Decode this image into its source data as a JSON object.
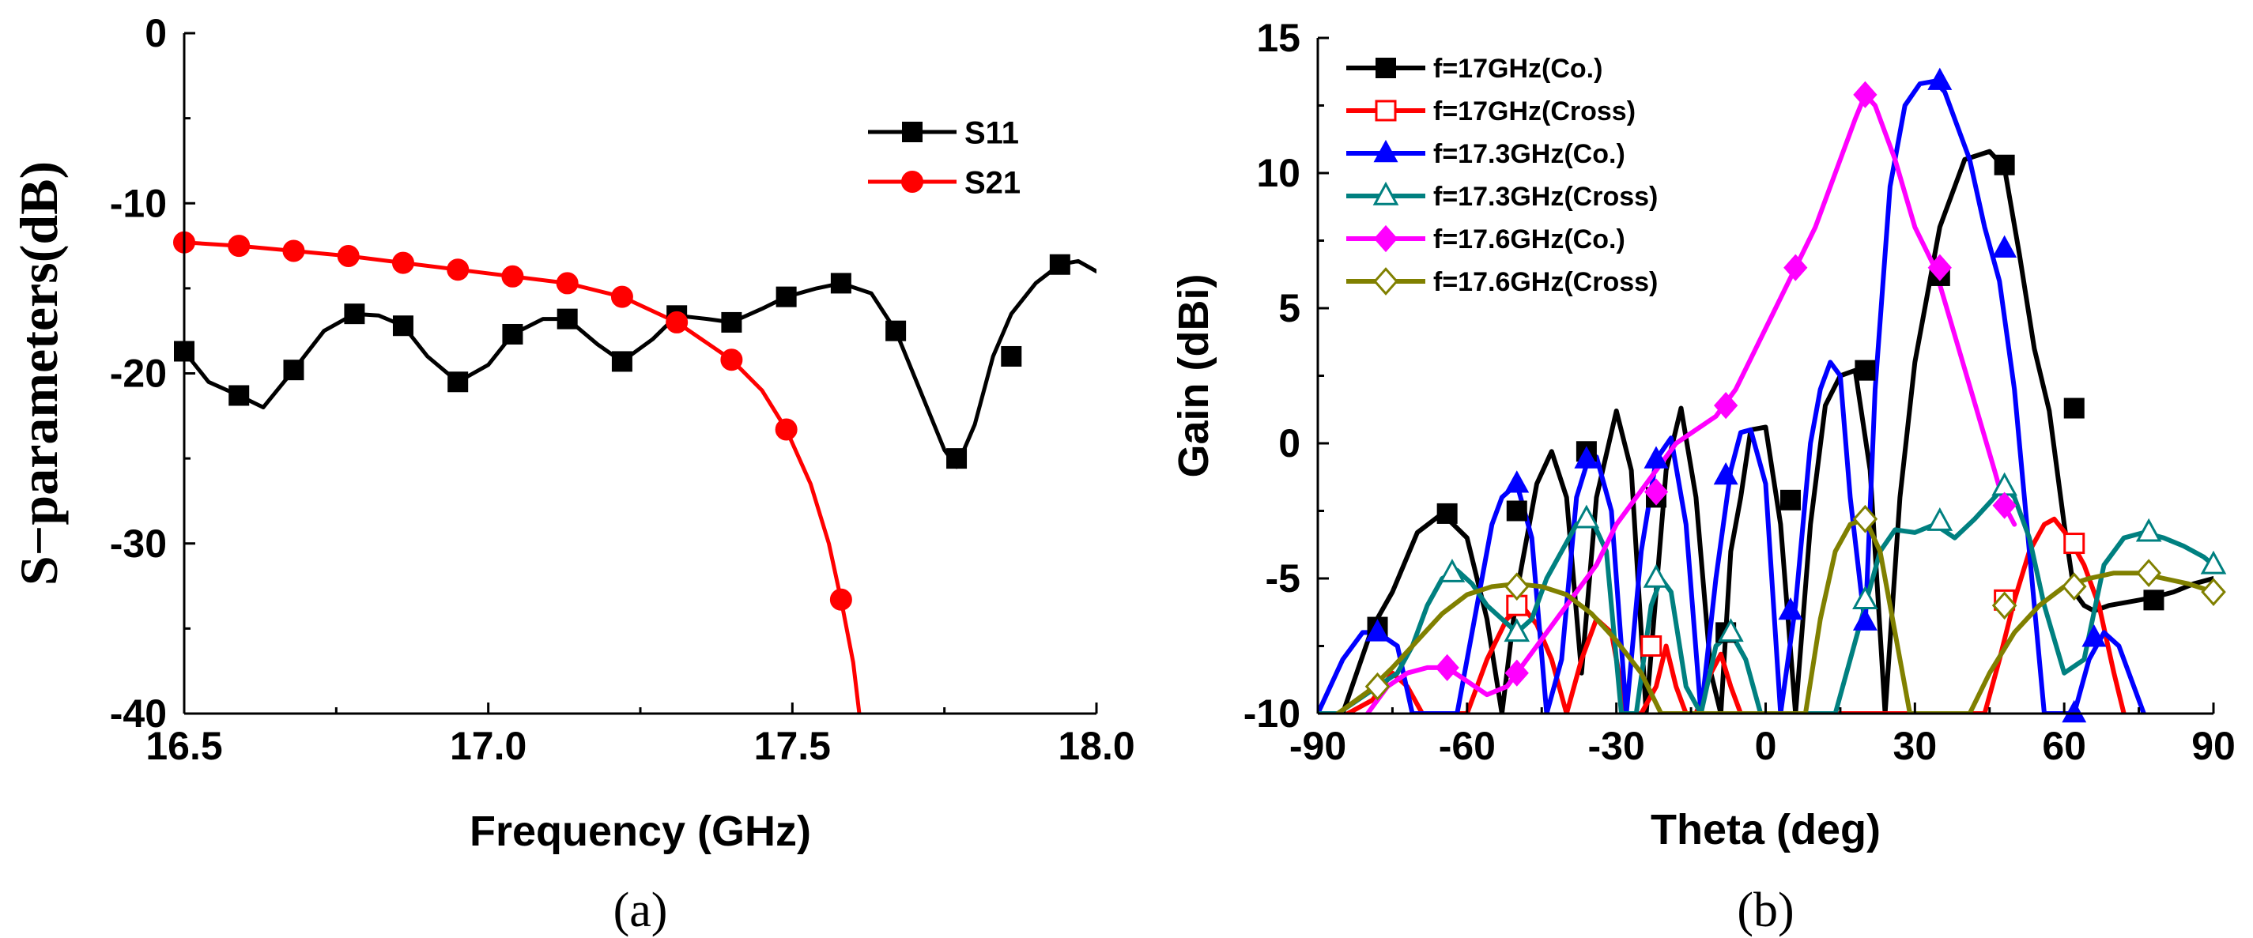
{
  "chart_data": [
    {
      "id": "a",
      "type": "line",
      "caption": "(a)",
      "xlabel": "Frequency (GHz)",
      "ylabel": "S−parameters(dB)",
      "xlim": [
        16.5,
        18.0
      ],
      "ylim": [
        -40,
        0
      ],
      "xticks": [
        16.5,
        17.0,
        17.5,
        18.0
      ],
      "xtick_labels": [
        "16.5",
        "17.0",
        "17.5",
        "18.0"
      ],
      "yticks": [
        -40,
        -30,
        -20,
        -10,
        0
      ],
      "ytick_labels": [
        "-40",
        "-30",
        "-20",
        "-10",
        "0"
      ],
      "legend_position": "top-right",
      "series": [
        {
          "name": "S11",
          "color": "#000000",
          "marker": "square-filled",
          "x": [
            16.5,
            16.54,
            16.59,
            16.63,
            16.68,
            16.73,
            16.78,
            16.82,
            16.86,
            16.9,
            16.95,
            17.0,
            17.04,
            17.09,
            17.13,
            17.18,
            17.22,
            17.27,
            17.31,
            17.36,
            17.4,
            17.45,
            17.49,
            17.54,
            17.58,
            17.63,
            17.67,
            17.71,
            17.75,
            17.77,
            17.8,
            17.83,
            17.86,
            17.9,
            17.94,
            17.97,
            18.0
          ],
          "y": [
            -18.7,
            -20.5,
            -21.3,
            -22.0,
            -19.8,
            -17.5,
            -16.5,
            -16.6,
            -17.2,
            -19.0,
            -20.5,
            -19.5,
            -17.7,
            -16.8,
            -16.8,
            -18.3,
            -19.3,
            -18.0,
            -16.6,
            -16.8,
            -17.0,
            -16.2,
            -15.5,
            -15.0,
            -14.7,
            -15.3,
            -17.5,
            -21.0,
            -24.5,
            -25.5,
            -23.0,
            -19.0,
            -16.5,
            -14.7,
            -13.6,
            -13.4,
            -14.0
          ],
          "marker_x": [
            16.5,
            16.59,
            16.68,
            16.78,
            16.86,
            16.95,
            17.04,
            17.13,
            17.22,
            17.31,
            17.4,
            17.49,
            17.58,
            17.67,
            17.77,
            17.86,
            17.94
          ],
          "marker_y": [
            -18.7,
            -21.3,
            -19.8,
            -16.5,
            -17.2,
            -20.5,
            -17.7,
            -16.8,
            -19.3,
            -16.6,
            -17.0,
            -15.5,
            -14.7,
            -17.5,
            -25.0,
            -19.0,
            -13.6
          ]
        },
        {
          "name": "S21",
          "color": "#ff0000",
          "marker": "circle-filled",
          "x": [
            16.5,
            16.59,
            16.68,
            16.77,
            16.86,
            16.95,
            17.04,
            17.13,
            17.22,
            17.31,
            17.4,
            17.45,
            17.49,
            17.53,
            17.56,
            17.58,
            17.6,
            17.61
          ],
          "y": [
            -12.3,
            -12.5,
            -12.8,
            -13.1,
            -13.5,
            -13.9,
            -14.3,
            -14.7,
            -15.5,
            -17.0,
            -19.2,
            -21.0,
            -23.3,
            -26.5,
            -30.0,
            -33.3,
            -37.0,
            -40.0
          ],
          "marker_x": [
            16.5,
            16.59,
            16.68,
            16.77,
            16.86,
            16.95,
            17.04,
            17.13,
            17.22,
            17.31,
            17.4,
            17.49,
            17.58
          ],
          "marker_y": [
            -12.3,
            -12.5,
            -12.8,
            -13.1,
            -13.5,
            -13.9,
            -14.3,
            -14.7,
            -15.5,
            -17.0,
            -19.2,
            -23.3,
            -33.3
          ]
        }
      ]
    },
    {
      "id": "b",
      "type": "line",
      "caption": "(b)",
      "xlabel": "Theta (deg)",
      "ylabel": "Gain (dBi)",
      "xlim": [
        -90,
        90
      ],
      "ylim": [
        -10,
        15
      ],
      "xticks": [
        -90,
        -60,
        -30,
        0,
        30,
        60,
        90
      ],
      "xtick_labels": [
        "-90",
        "-60",
        "-30",
        "0",
        "30",
        "60",
        "90"
      ],
      "yticks": [
        -10,
        -5,
        0,
        5,
        10,
        15
      ],
      "ytick_labels": [
        "-10",
        "-5",
        "0",
        "5",
        "10",
        "15"
      ],
      "legend_position": "top-left",
      "series": [
        {
          "name": "f=17GHz(Co.)",
          "color": "#000000",
          "marker": "square-filled",
          "x": [
            -85,
            -79,
            -75,
            -70,
            -65,
            -60,
            -56,
            -53,
            -50,
            -46,
            -43,
            -40,
            -37,
            -34,
            -30,
            -27,
            -24,
            -20,
            -17,
            -14,
            -11,
            -9,
            -7,
            -5,
            -3,
            0,
            3,
            6,
            9,
            12,
            15,
            18,
            21,
            24,
            27,
            30,
            35,
            40,
            45,
            48,
            51,
            54,
            57,
            60,
            62,
            64,
            66,
            69,
            72,
            75,
            78,
            82,
            86,
            90
          ],
          "y": [
            -10,
            -6.8,
            -5.5,
            -3.3,
            -2.6,
            -3.5,
            -6.5,
            -10,
            -5.5,
            -1.5,
            -0.3,
            -2.0,
            -8.5,
            -2.0,
            1.2,
            -1.0,
            -10,
            -1.0,
            1.3,
            -2.0,
            -8.5,
            -10,
            -4.0,
            -2.0,
            0.5,
            0.6,
            -3.0,
            -10,
            -3.0,
            1.4,
            2.5,
            2.7,
            -1.0,
            -10,
            -2.0,
            3.0,
            8.0,
            10.5,
            10.8,
            10.2,
            7.0,
            3.5,
            1.2,
            -3.0,
            -5.5,
            -6.0,
            -6.2,
            -6.0,
            -5.9,
            -5.8,
            -5.7,
            -5.5,
            -5.2,
            -5.0
          ],
          "marker_x": [
            -78,
            -64,
            -50,
            -36,
            -22,
            -8,
            5,
            20,
            35,
            48,
            62,
            78
          ],
          "marker_y": [
            -6.8,
            -2.6,
            -2.5,
            -0.3,
            -2.0,
            -7.0,
            -2.1,
            2.7,
            6.2,
            10.3,
            1.3,
            -5.8
          ]
        },
        {
          "name": "f=17GHz(Cross)",
          "color": "#ff0000",
          "marker": "square-open",
          "x": [
            -84,
            -79,
            -75,
            -72,
            -69,
            -66,
            -63,
            -60,
            -56,
            -52,
            -49,
            -46,
            -43,
            -40,
            -37,
            -34,
            -31,
            -28,
            -25,
            -22,
            -20,
            -18,
            -16,
            -14,
            -11,
            -9,
            -7,
            -5,
            -2,
            44,
            47,
            50,
            53,
            56,
            58,
            61,
            64,
            67,
            70,
            72
          ],
          "y": [
            -10,
            -9.5,
            -8.5,
            -9.0,
            -10,
            -10,
            -10,
            -10,
            -8.0,
            -6.5,
            -6.0,
            -6.7,
            -8.0,
            -10,
            -8.0,
            -6.5,
            -7.0,
            -10,
            -10,
            -9.0,
            -7.5,
            -9.0,
            -10,
            -10,
            -8.5,
            -7.8,
            -9.0,
            -10,
            -10,
            -10,
            -8.0,
            -5.8,
            -4.0,
            -3.0,
            -2.8,
            -3.5,
            -4.5,
            -6.0,
            -8.5,
            -10
          ],
          "marker_x": [
            -50,
            -23,
            48,
            62
          ],
          "marker_y": [
            -6.0,
            -7.5,
            -5.8,
            -3.7
          ]
        },
        {
          "name": "f=17.3GHz(Co.)",
          "color": "#0000ff",
          "marker": "triangle-filled",
          "x": [
            -90,
            -85,
            -81,
            -78,
            -74,
            -71,
            -68,
            -65,
            -62,
            -59,
            -55,
            -53,
            -50,
            -47,
            -44,
            -41,
            -38,
            -36,
            -34,
            -31,
            -28,
            -25,
            -22,
            -19,
            -16,
            -13,
            -10,
            -7,
            -5,
            -3,
            0,
            3,
            6,
            9,
            11,
            13,
            15,
            17,
            20,
            22,
            25,
            28,
            31,
            34,
            36,
            38,
            41,
            44,
            47,
            50,
            53,
            56,
            59,
            62,
            65,
            68,
            71,
            74,
            76
          ],
          "y": [
            -10,
            -8.0,
            -7.0,
            -7.0,
            -7.5,
            -10,
            -10,
            -10,
            -10,
            -7.0,
            -3.0,
            -2.0,
            -1.5,
            -3.5,
            -10,
            -8.0,
            -2.0,
            -0.8,
            -0.5,
            -2.5,
            -10,
            -4.0,
            -0.6,
            0.2,
            -3.0,
            -10,
            -5.0,
            -1.0,
            0.4,
            0.5,
            -1.5,
            -10,
            -6.0,
            0.0,
            2.0,
            3.0,
            2.5,
            -2.0,
            -6.8,
            2.0,
            9.5,
            12.5,
            13.3,
            13.4,
            13.0,
            12.0,
            10.5,
            8.0,
            6.0,
            2.0,
            -4.0,
            -10,
            -10,
            -10,
            -8.0,
            -7.0,
            -7.5,
            -9.0,
            -10
          ],
          "marker_x": [
            -78,
            -50,
            -36,
            -22,
            -8,
            5,
            20,
            35,
            48,
            62,
            66
          ],
          "marker_y": [
            -7.0,
            -1.5,
            -0.6,
            -0.6,
            -1.2,
            -6.2,
            -6.6,
            13.4,
            7.2,
            -10,
            -7.2
          ]
        },
        {
          "name": "f=17.3GHz(Cross)",
          "color": "#008080",
          "marker": "triangle-open",
          "x": [
            -90,
            -86,
            -82,
            -78,
            -74,
            -71,
            -68,
            -65,
            -62,
            -59,
            -56,
            -53,
            -50,
            -47,
            -44,
            -41,
            -38,
            -35,
            -32,
            -29,
            -26,
            -23,
            -21,
            -19,
            -16,
            -13,
            -10,
            -7,
            -4,
            -1,
            2,
            5,
            8,
            11,
            14,
            17,
            20,
            23,
            26,
            30,
            34,
            38,
            42,
            46,
            48,
            50,
            53,
            56,
            60,
            64,
            68,
            72,
            76,
            80,
            84,
            88,
            90
          ],
          "y": [
            -10,
            -10,
            -9.5,
            -9.0,
            -8.5,
            -7.5,
            -6.0,
            -5.0,
            -4.7,
            -5.2,
            -6.0,
            -6.5,
            -7.0,
            -6.5,
            -5.0,
            -4.0,
            -3.0,
            -2.8,
            -4.0,
            -10,
            -10,
            -6.0,
            -5.0,
            -5.5,
            -9.0,
            -10,
            -7.5,
            -7.0,
            -8.0,
            -10,
            -10,
            -10,
            -10,
            -10,
            -10,
            -8.0,
            -6.0,
            -4.0,
            -3.2,
            -3.3,
            -3.0,
            -3.5,
            -2.8,
            -2.0,
            -1.6,
            -2.0,
            -3.5,
            -6.0,
            -8.5,
            -8.0,
            -4.5,
            -3.5,
            -3.3,
            -3.5,
            -3.8,
            -4.2,
            -4.5
          ],
          "marker_x": [
            -63,
            -50,
            -36,
            -22,
            -7,
            20,
            35,
            48,
            77,
            90
          ],
          "marker_y": [
            -4.8,
            -7.0,
            -2.8,
            -5.0,
            -7.0,
            -5.8,
            -2.9,
            -1.6,
            -3.3,
            -4.5
          ]
        },
        {
          "name": "f=17.6GHz(Co.)",
          "color": "#ff00ff",
          "marker": "diamond-filled",
          "x": [
            -80,
            -76,
            -72,
            -68,
            -64,
            -60,
            -56,
            -52,
            -50,
            -46,
            -42,
            -38,
            -34,
            -30,
            -26,
            -22,
            -18,
            -14,
            -10,
            -6,
            -2,
            2,
            6,
            10,
            14,
            18,
            20,
            22,
            26,
            30,
            34,
            38,
            42,
            46,
            48,
            50
          ],
          "y": [
            -10,
            -9.0,
            -8.5,
            -8.3,
            -8.3,
            -8.8,
            -9.3,
            -9.0,
            -8.5,
            -7.5,
            -6.5,
            -5.5,
            -4.5,
            -3.0,
            -2.0,
            -1.0,
            0.0,
            0.5,
            1.0,
            2.0,
            3.5,
            5.0,
            6.5,
            8.0,
            10.0,
            12.0,
            12.9,
            12.5,
            10.5,
            8.0,
            6.5,
            4.0,
            1.5,
            -1.0,
            -2.3,
            -3.0
          ],
          "marker_x": [
            -64,
            -50,
            -22,
            -8,
            6,
            20,
            35,
            48
          ],
          "marker_y": [
            -8.3,
            -8.5,
            -1.8,
            1.4,
            6.5,
            12.9,
            6.5,
            -2.3
          ]
        },
        {
          "name": "f=17.6GHz(Cross)",
          "color": "#808000",
          "marker": "diamond-open",
          "x": [
            -86,
            -80,
            -75,
            -70,
            -65,
            -60,
            -55,
            -50,
            -45,
            -40,
            -35,
            -30,
            -25,
            -21,
            8,
            11,
            14,
            17,
            20,
            23,
            26,
            29,
            32,
            35,
            41,
            45,
            50,
            55,
            60,
            65,
            70,
            75,
            80,
            85,
            90
          ],
          "y": [
            -10,
            -9.2,
            -8.3,
            -7.3,
            -6.3,
            -5.6,
            -5.3,
            -5.2,
            -5.3,
            -5.6,
            -6.3,
            -7.3,
            -8.5,
            -10,
            -10,
            -6.5,
            -4.0,
            -3.0,
            -2.8,
            -4.0,
            -7.0,
            -10,
            -10,
            -10,
            -10,
            -8.5,
            -7.0,
            -6.0,
            -5.3,
            -5.0,
            -4.8,
            -4.8,
            -5.0,
            -5.2,
            -5.5
          ],
          "marker_x": [
            -78,
            -50,
            20,
            48,
            62,
            77,
            90
          ],
          "marker_y": [
            -9.0,
            -5.3,
            -2.8,
            -6.0,
            -5.3,
            -4.8,
            -5.5
          ]
        }
      ]
    }
  ]
}
